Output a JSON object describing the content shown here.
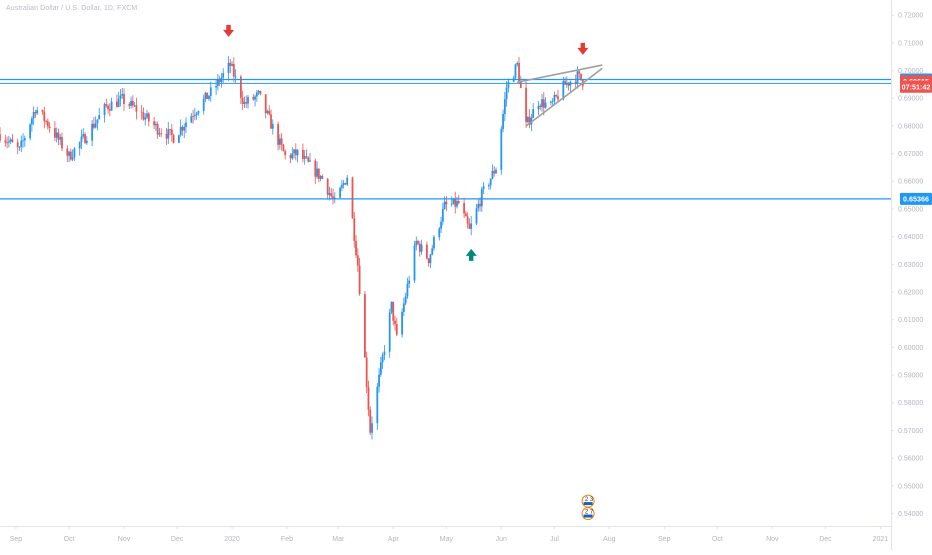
{
  "header": {
    "symbol_title": "Australian Dollar / U.S. Dollar, 1D, FXCM"
  },
  "colors": {
    "up": "#2196f3",
    "down": "#ef5350",
    "level_line": "#2196f3",
    "arrow_down": "#e53935",
    "arrow_up": "#00897b",
    "wedge": "#9e9e9e",
    "axis_text": "#b2b5be",
    "grid_sep": "#e0e3eb"
  },
  "chart_data": {
    "type": "candlestick",
    "title": "Australian Dollar / U.S. Dollar, 1D, FXCM",
    "x_range": [
      "2019-08-23",
      "2021-01-07"
    ],
    "y_range": [
      0.5355,
      0.7255
    ],
    "x_tick_labels": [
      {
        "date": "2019-09-01",
        "label": "Sep"
      },
      {
        "date": "2019-10-01",
        "label": "Oct"
      },
      {
        "date": "2019-11-01",
        "label": "Nov"
      },
      {
        "date": "2019-12-01",
        "label": "Dec"
      },
      {
        "date": "2020-01-01",
        "label": "2020"
      },
      {
        "date": "2020-02-01",
        "label": "Feb"
      },
      {
        "date": "2020-03-01",
        "label": "Mar"
      },
      {
        "date": "2020-04-01",
        "label": "Apr"
      },
      {
        "date": "2020-05-01",
        "label": "May"
      },
      {
        "date": "2020-06-01",
        "label": "Jun"
      },
      {
        "date": "2020-07-01",
        "label": "Jul"
      },
      {
        "date": "2020-08-01",
        "label": "Aug"
      },
      {
        "date": "2020-09-01",
        "label": "Sep"
      },
      {
        "date": "2020-10-01",
        "label": "Oct"
      },
      {
        "date": "2020-11-01",
        "label": "Nov"
      },
      {
        "date": "2020-12-01",
        "label": "Dec"
      },
      {
        "date": "2021-01-01",
        "label": "2021"
      }
    ],
    "y_tick_labels": [
      "0.72000",
      "0.71000",
      "0.70000",
      "0.69000",
      "0.68000",
      "0.67000",
      "0.66000",
      "0.65000",
      "0.64000",
      "0.63000",
      "0.62000",
      "0.61000",
      "0.60000",
      "0.59000",
      "0.58000",
      "0.57000",
      "0.56000",
      "0.55000",
      "0.54000"
    ],
    "price_labels": [
      {
        "value": 0.69679,
        "label": "0.69679",
        "color": "#2196f3"
      },
      {
        "value": 0.69615,
        "label": "0.69615",
        "color": "#ef5350"
      },
      {
        "value": 0.69415,
        "label": "07:51:42",
        "color": "#ef5350"
      },
      {
        "value": 0.65366,
        "label": "0.65366",
        "color": "#2196f3"
      }
    ],
    "horizontal_levels": [
      {
        "value": 0.69679,
        "double": true
      },
      {
        "value": 0.65366,
        "double": false
      }
    ],
    "wedge_lines": [
      {
        "from": {
          "date": "2020-06-10",
          "price": 0.6958
        },
        "to": {
          "date": "2020-07-28",
          "price": 0.702
        }
      },
      {
        "from": {
          "date": "2020-06-15",
          "price": 0.68
        },
        "to": {
          "date": "2020-07-28",
          "price": 0.7008
        }
      }
    ],
    "arrows": [
      {
        "date": "2019-12-30",
        "price": 0.714,
        "direction": "down"
      },
      {
        "date": "2020-05-15",
        "price": 0.6338,
        "direction": "up"
      },
      {
        "date": "2020-07-17",
        "price": 0.7075,
        "direction": "down"
      }
    ],
    "event_badges": [
      {
        "date": "2020-07-20",
        "price": 0.5445,
        "label": "2 3"
      },
      {
        "date": "2020-07-20",
        "price": 0.54,
        "label": "2 7"
      }
    ],
    "price_anchors": [
      [
        "2019-08-23",
        0.677
      ],
      [
        "2019-09-03",
        0.671
      ],
      [
        "2019-09-12",
        0.6865
      ],
      [
        "2019-09-20",
        0.68
      ],
      [
        "2019-10-01",
        0.669
      ],
      [
        "2019-10-10",
        0.676
      ],
      [
        "2019-10-22",
        0.687
      ],
      [
        "2019-10-31",
        0.6895
      ],
      [
        "2019-11-08",
        0.686
      ],
      [
        "2019-11-20",
        0.679
      ],
      [
        "2019-11-29",
        0.676
      ],
      [
        "2019-12-09",
        0.684
      ],
      [
        "2019-12-20",
        0.692
      ],
      [
        "2019-12-31",
        0.702
      ],
      [
        "2020-01-08",
        0.688
      ],
      [
        "2020-01-16",
        0.691
      ],
      [
        "2020-01-31",
        0.669
      ],
      [
        "2020-02-07",
        0.67
      ],
      [
        "2020-02-21",
        0.661
      ],
      [
        "2020-02-28",
        0.652
      ],
      [
        "2020-03-06",
        0.662
      ],
      [
        "2020-03-12",
        0.63
      ],
      [
        "2020-03-19",
        0.57
      ],
      [
        "2020-03-23",
        0.585
      ],
      [
        "2020-03-31",
        0.615
      ],
      [
        "2020-04-03",
        0.603
      ],
      [
        "2020-04-14",
        0.638
      ],
      [
        "2020-04-21",
        0.632
      ],
      [
        "2020-04-30",
        0.651
      ],
      [
        "2020-05-08",
        0.652
      ],
      [
        "2020-05-14",
        0.642
      ],
      [
        "2020-05-21",
        0.655
      ],
      [
        "2020-05-29",
        0.665
      ],
      [
        "2020-06-04",
        0.694
      ],
      [
        "2020-06-10",
        0.702
      ],
      [
        "2020-06-15",
        0.68
      ],
      [
        "2020-06-22",
        0.689
      ],
      [
        "2020-06-29",
        0.687
      ],
      [
        "2020-07-07",
        0.695
      ],
      [
        "2020-07-14",
        0.698
      ],
      [
        "2020-07-17",
        0.6962
      ]
    ]
  }
}
